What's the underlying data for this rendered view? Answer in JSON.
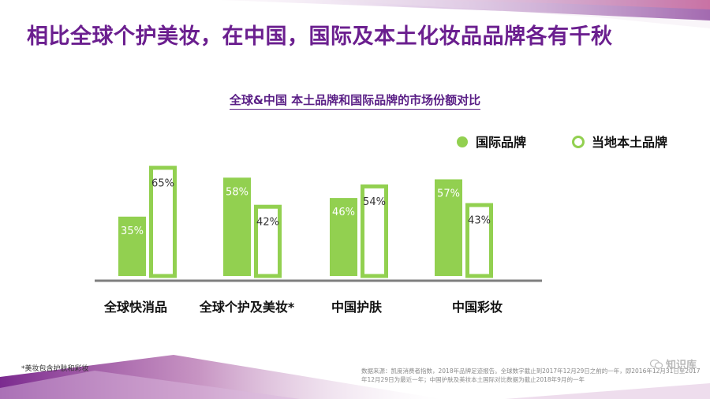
{
  "slide": {
    "title": "相比全球个护美妆，在中国，国际及本土化妆品品牌各有千秋"
  },
  "chart_data": {
    "type": "bar",
    "title": "全球&中国 本土品牌和国际品牌的市场份额对比",
    "categories": [
      "全球快消品",
      "全球个护及美妆*",
      "中国护肤",
      "中国彩妆"
    ],
    "series": [
      {
        "name": "国际品牌",
        "values": [
          35,
          58,
          46,
          57
        ],
        "labels": [
          "35%",
          "58%",
          "46%",
          "57%"
        ]
      },
      {
        "name": "当地本土品牌",
        "values": [
          65,
          42,
          54,
          43
        ],
        "labels": [
          "65%",
          "42%",
          "54%",
          "43%"
        ]
      }
    ],
    "ylim": [
      0,
      100
    ],
    "unit": "%",
    "legend_position": "top-right",
    "grid": false,
    "colors": {
      "filled": "#92d050",
      "outline": "#92d050",
      "axis": "#7f7f7f"
    }
  },
  "footnote": "*美妆包含护肤和彩妆",
  "source": "数据来源：凯度消费者指数，2018年品牌足迹报告。全球数字截止到2017年12月29日之前的一年，即2016年12月31日至2017年12月29日为最近一年；中国护肤及美妆本土国际对比数据为截止2018年9月的一年",
  "watermark": {
    "text": "知识库",
    "icon": "wechat-icon"
  },
  "decoration": {
    "colors": [
      "#7b2a8f",
      "#c0397a",
      "#e9d8ea",
      "#f3c7dc"
    ]
  }
}
